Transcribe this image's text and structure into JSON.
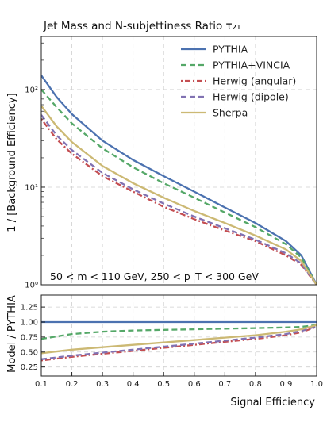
{
  "chart_data": [
    {
      "type": "line",
      "title": "Jet Mass and N-subjettiness Ratio τ₂₁",
      "xlabel": "",
      "ylabel": "1 / [Background Efficiency]",
      "yscale": "log",
      "xlim": [
        0.1,
        1.0
      ],
      "ylim": [
        1,
        350
      ],
      "ytick_labels": [
        "10⁰",
        "10¹",
        "10²"
      ],
      "ytick_values": [
        1,
        10,
        100
      ],
      "grid": true,
      "legend_position": "top-right",
      "annotation": "50 < m < 110 GeV, 250 < p_T < 300 GeV",
      "x": [
        0.1,
        0.15,
        0.2,
        0.3,
        0.4,
        0.5,
        0.6,
        0.7,
        0.8,
        0.9,
        0.95,
        1.0
      ],
      "series": [
        {
          "name": "PYTHIA",
          "color": "#4C72B0",
          "style": "solid",
          "values": [
            140,
            84,
            56,
            30,
            19,
            13,
            9,
            6.2,
            4.3,
            2.8,
            2.0,
            1.0
          ]
        },
        {
          "name": "PYTHIA+VINCIA",
          "color": "#55A868",
          "style": "dashed",
          "values": [
            100,
            66,
            45,
            25,
            16,
            11,
            7.8,
            5.5,
            3.9,
            2.6,
            1.9,
            1.0
          ]
        },
        {
          "name": "Herwig (angular)",
          "color": "#C44E52",
          "style": "dashdot",
          "values": [
            50,
            31,
            22,
            13,
            9,
            6.3,
            4.7,
            3.6,
            2.8,
            2.0,
            1.6,
            1.0
          ]
        },
        {
          "name": "Herwig (dipole)",
          "color": "#8172B2",
          "style": "dashed",
          "values": [
            55,
            34,
            24,
            14,
            9.5,
            6.8,
            5.0,
            3.8,
            2.9,
            2.1,
            1.65,
            1.0
          ]
        },
        {
          "name": "Sherpa",
          "color": "#CCB974",
          "style": "solid",
          "values": [
            68,
            42,
            29,
            16.5,
            11,
            7.8,
            5.7,
            4.3,
            3.2,
            2.3,
            1.75,
            1.0
          ]
        }
      ]
    },
    {
      "type": "line",
      "xlabel": "Signal Efficiency",
      "ylabel": "Model / PYTHIA",
      "xlim": [
        0.1,
        1.0
      ],
      "ylim": [
        0.1,
        1.45
      ],
      "xtick_labels": [
        "0.1",
        "0.2",
        "0.3",
        "0.4",
        "0.5",
        "0.6",
        "0.7",
        "0.8",
        "0.9",
        "1.0"
      ],
      "xtick_values": [
        0.1,
        0.2,
        0.3,
        0.4,
        0.5,
        0.6,
        0.7,
        0.8,
        0.9,
        1.0
      ],
      "ytick_labels": [
        "0.25",
        "0.50",
        "0.75",
        "1.00",
        "1.25"
      ],
      "ytick_values": [
        0.25,
        0.5,
        0.75,
        1.0,
        1.25
      ],
      "grid": true,
      "x": [
        0.1,
        0.2,
        0.3,
        0.4,
        0.5,
        0.6,
        0.7,
        0.8,
        0.9,
        0.95,
        1.0
      ],
      "series": [
        {
          "name": "PYTHIA",
          "color": "#4C72B0",
          "style": "solid",
          "values": [
            1.0,
            1.0,
            1.0,
            1.0,
            1.0,
            1.0,
            1.0,
            1.0,
            1.0,
            1.0,
            1.0
          ]
        },
        {
          "name": "PYTHIA+VINCIA",
          "color": "#55A868",
          "style": "dashed",
          "values": [
            0.72,
            0.8,
            0.84,
            0.86,
            0.87,
            0.88,
            0.89,
            0.9,
            0.91,
            0.92,
            0.95
          ]
        },
        {
          "name": "Herwig (angular)",
          "color": "#C44E52",
          "style": "dashdot",
          "values": [
            0.36,
            0.42,
            0.47,
            0.52,
            0.57,
            0.62,
            0.67,
            0.72,
            0.78,
            0.83,
            0.92
          ]
        },
        {
          "name": "Herwig (dipole)",
          "color": "#8172B2",
          "style": "dashed",
          "values": [
            0.38,
            0.44,
            0.49,
            0.54,
            0.59,
            0.64,
            0.69,
            0.74,
            0.8,
            0.85,
            0.93
          ]
        },
        {
          "name": "Sherpa",
          "color": "#CCB974",
          "style": "solid",
          "values": [
            0.48,
            0.54,
            0.58,
            0.62,
            0.66,
            0.7,
            0.74,
            0.78,
            0.84,
            0.88,
            0.95
          ]
        }
      ]
    }
  ]
}
